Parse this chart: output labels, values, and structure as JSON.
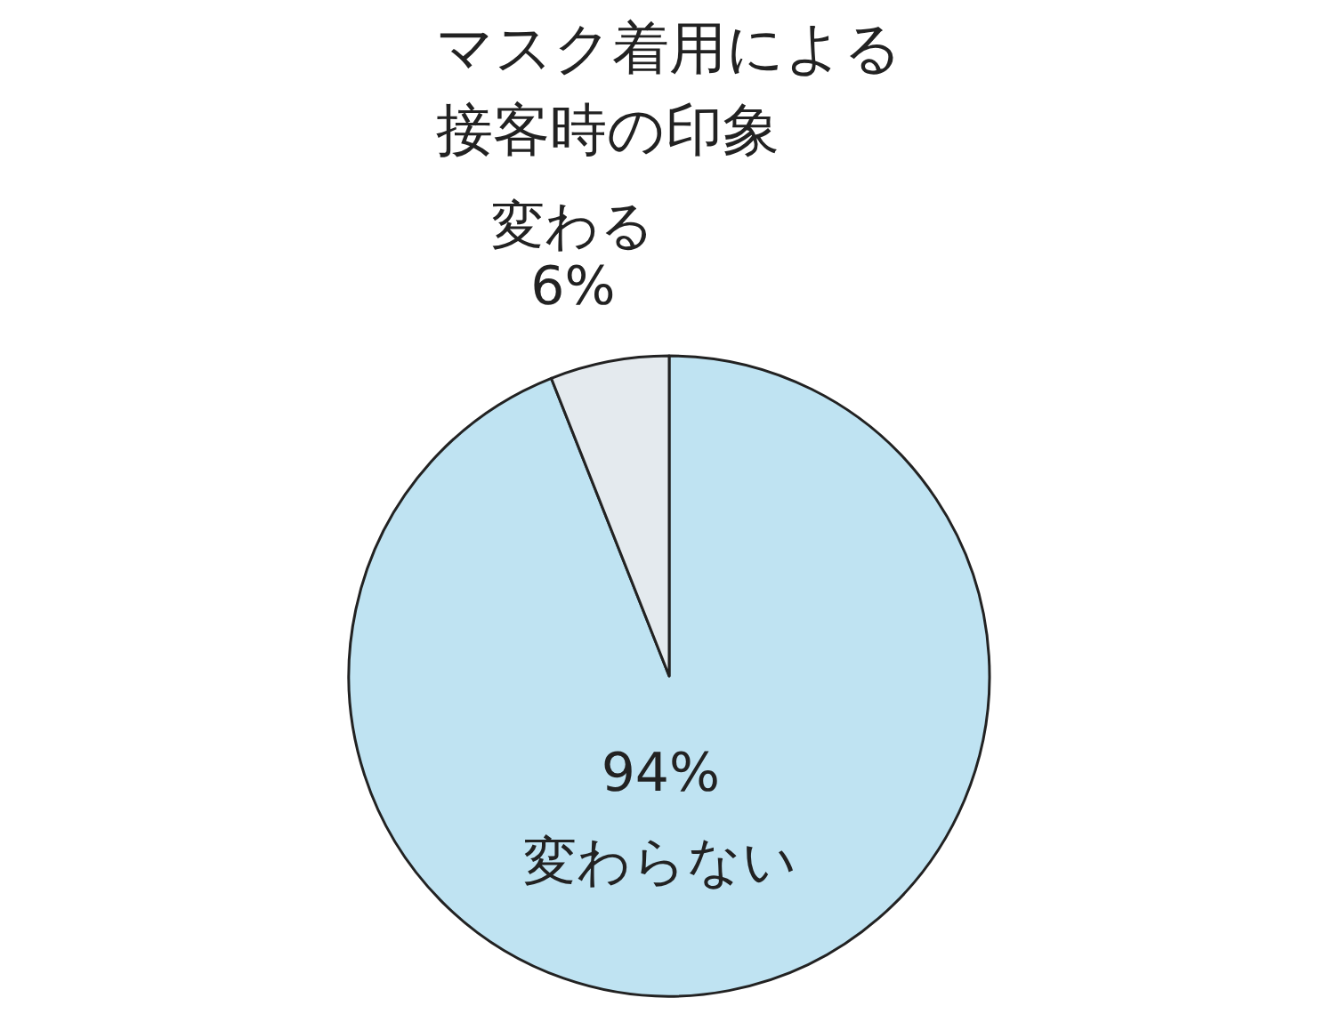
{
  "chart_data": {
    "type": "pie",
    "title": "マスク着用による接客時の印象",
    "categories": [
      "変わらない",
      "変わる"
    ],
    "values": [
      94,
      6
    ],
    "value_labels": [
      "94%",
      "6%"
    ],
    "colors": [
      "#bfe3f2",
      "#e4eaee"
    ]
  }
}
